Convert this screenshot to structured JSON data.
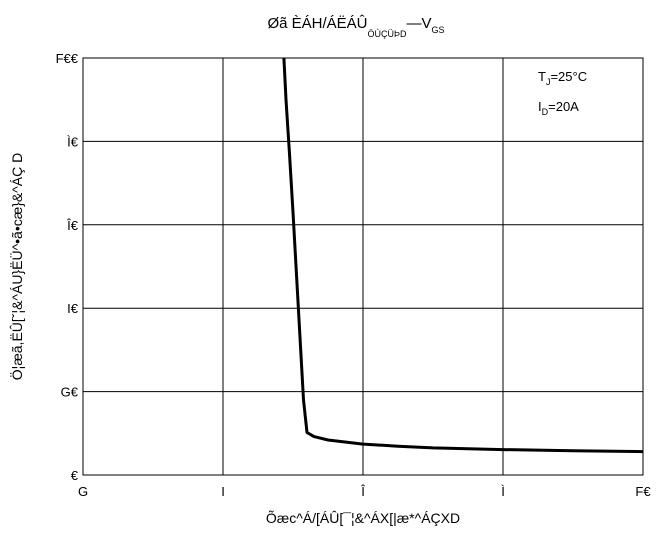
{
  "chart_data": {
    "type": "line",
    "title": {
      "main": "Øã ÈÁH/ÁËÁÛ",
      "sub": "ÖÙÇÜÞD",
      "dash": "—",
      "var": "V",
      "var_sub": "GS"
    },
    "xlabel": "Õæc^Á/[ÁÛ[¯¦&^ÁX[|æ*^ÁÇXD",
    "ylabel": "Ö¦æã,ËÛ[ˇ¦&^ÁU}ËÜ^•ã•cæ}&^ÁÇ",
    "ylabel_end": "D",
    "x_ticks": [
      {
        "value": 2,
        "label": "G"
      },
      {
        "value": 4,
        "label": "I"
      },
      {
        "value": 6,
        "label": "Î"
      },
      {
        "value": 8,
        "label": "Ì"
      },
      {
        "value": 10,
        "label": "F€"
      }
    ],
    "y_ticks": [
      {
        "value": 0,
        "label": "€"
      },
      {
        "value": 20,
        "label": "G€"
      },
      {
        "value": 40,
        "label": "I€"
      },
      {
        "value": 60,
        "label": "Î€"
      },
      {
        "value": 80,
        "label": "Ì€"
      },
      {
        "value": 100,
        "label": "F€€"
      }
    ],
    "xlim": [
      2,
      10
    ],
    "ylim": [
      0,
      100
    ],
    "grid": true,
    "legend": {
      "position": "top-right",
      "entries": [
        {
          "var": "T",
          "sub": "J",
          "rest": "=25°C"
        },
        {
          "var": "I",
          "sub": "D",
          "rest": "=20A"
        }
      ]
    },
    "series": [
      {
        "color": "#000000",
        "points": [
          [
            4.87,
            100
          ],
          [
            4.9,
            90
          ],
          [
            4.95,
            77
          ],
          [
            5.0,
            63
          ],
          [
            5.05,
            48
          ],
          [
            5.1,
            33
          ],
          [
            5.15,
            18
          ],
          [
            5.2,
            10.2
          ],
          [
            5.3,
            9.2
          ],
          [
            5.5,
            8.4
          ],
          [
            6.0,
            7.4
          ],
          [
            6.5,
            6.9
          ],
          [
            7.0,
            6.5
          ],
          [
            7.5,
            6.3
          ],
          [
            8.0,
            6.1
          ],
          [
            9.0,
            5.8
          ],
          [
            10.0,
            5.6
          ]
        ]
      }
    ]
  }
}
